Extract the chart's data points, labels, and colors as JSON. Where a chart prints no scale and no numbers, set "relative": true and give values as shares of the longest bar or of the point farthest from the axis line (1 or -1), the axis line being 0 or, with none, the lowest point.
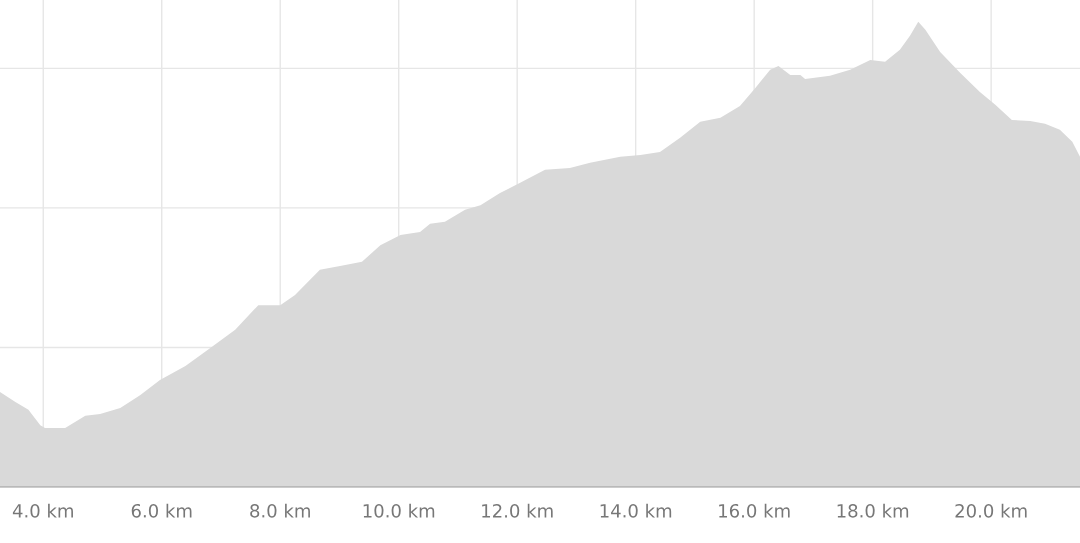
{
  "chart_data": {
    "type": "area",
    "relative": true,
    "color": "#d9d9d9",
    "grid": true,
    "x": [
      3.27,
      3.53,
      3.75,
      3.95,
      4.03,
      4.37,
      4.71,
      4.96,
      5.3,
      5.64,
      5.97,
      6.4,
      6.82,
      7.24,
      7.63,
      8.0,
      8.25,
      8.67,
      9.01,
      9.38,
      9.69,
      10.03,
      10.36,
      10.53,
      10.78,
      11.12,
      11.38,
      11.71,
      12.05,
      12.47,
      12.89,
      13.23,
      13.74,
      14.08,
      14.41,
      14.75,
      15.09,
      15.43,
      15.76,
      16.02,
      16.27,
      16.41,
      16.61,
      16.78,
      16.86,
      17.28,
      17.62,
      17.96,
      18.21,
      18.46,
      18.63,
      18.77,
      18.89,
      19.14,
      19.48,
      19.81,
      20.07,
      20.35,
      20.66,
      20.91,
      21.16,
      21.37,
      21.5
    ],
    "values": [
      0.204,
      0.183,
      0.166,
      0.133,
      0.127,
      0.127,
      0.153,
      0.157,
      0.17,
      0.198,
      0.23,
      0.26,
      0.299,
      0.338,
      0.391,
      0.391,
      0.413,
      0.467,
      0.475,
      0.484,
      0.52,
      0.542,
      0.548,
      0.566,
      0.57,
      0.596,
      0.606,
      0.632,
      0.654,
      0.682,
      0.686,
      0.697,
      0.71,
      0.714,
      0.72,
      0.751,
      0.785,
      0.794,
      0.819,
      0.858,
      0.897,
      0.905,
      0.886,
      0.886,
      0.877,
      0.884,
      0.897,
      0.918,
      0.914,
      0.94,
      0.97,
      1.0,
      0.983,
      0.935,
      0.89,
      0.849,
      0.822,
      0.789,
      0.787,
      0.781,
      0.768,
      0.742,
      0.71
    ],
    "xlim": [
      3.27,
      21.5
    ],
    "xticks": [
      {
        "value": 4,
        "label": "4.0 km"
      },
      {
        "value": 6,
        "label": "6.0 km"
      },
      {
        "value": 8,
        "label": "8.0 km"
      },
      {
        "value": 10,
        "label": "10.0 km"
      },
      {
        "value": 12,
        "label": "12.0 km"
      },
      {
        "value": 14,
        "label": "14.0 km"
      },
      {
        "value": 16,
        "label": "16.0 km"
      },
      {
        "value": 18,
        "label": "18.0 km"
      },
      {
        "value": 20,
        "label": "20.0 km"
      }
    ]
  }
}
